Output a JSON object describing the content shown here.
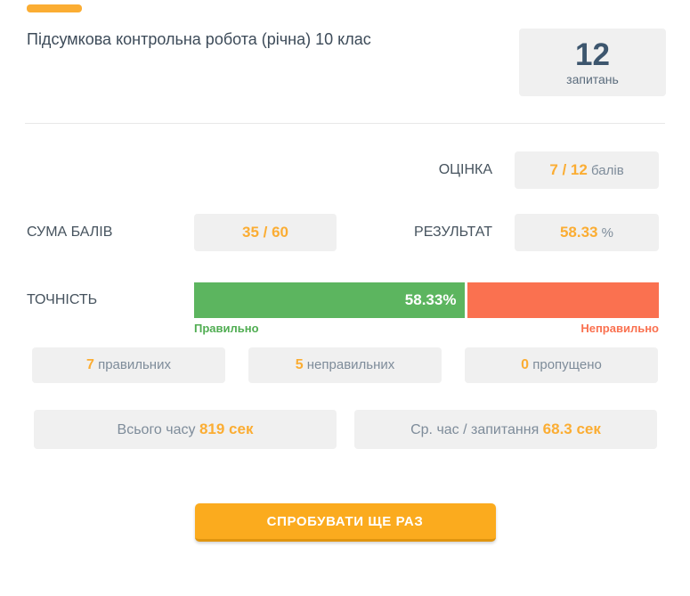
{
  "page": {
    "title": "Підсумкова контрольна робота (річна) 10 клас"
  },
  "questions_box": {
    "count": "12",
    "caption": "запитань"
  },
  "grade": {
    "label": "ОЦІНКА",
    "value": "7 / 12",
    "unit": " балів"
  },
  "sum_points": {
    "label": "СУМА БАЛІВ",
    "value": "35 / 60"
  },
  "result": {
    "label": "РЕЗУЛЬТАТ",
    "value": "58.33",
    "unit": " %"
  },
  "accuracy": {
    "label": "ТОЧНІСТЬ",
    "correct_pct": 58.33,
    "bar_text": "58.33%",
    "caption_correct": "Правильно",
    "caption_incorrect": "Неправильно"
  },
  "stats": [
    {
      "value": "7",
      "label": " правильних"
    },
    {
      "value": "5",
      "label": " неправильних"
    },
    {
      "value": "0",
      "label": " пропущено"
    }
  ],
  "timing": [
    {
      "label": "Всього часу ",
      "value": "819 сек"
    },
    {
      "label": "Ср. час / запитання ",
      "value": "68.3 сек"
    }
  ],
  "retry_button": {
    "label": "СПРОБУВАТИ ЩЕ РАЗ"
  },
  "colors": {
    "accent_orange": "#fbad33",
    "button_orange": "#fbab1e",
    "bar_green": "#5cb55f",
    "caption_green": "#50ad52",
    "bar_orange": "#fa7150",
    "box_bg": "#f0f0f0",
    "dark_slate": "#3d566e",
    "gray_text": "#7e8c9a"
  }
}
